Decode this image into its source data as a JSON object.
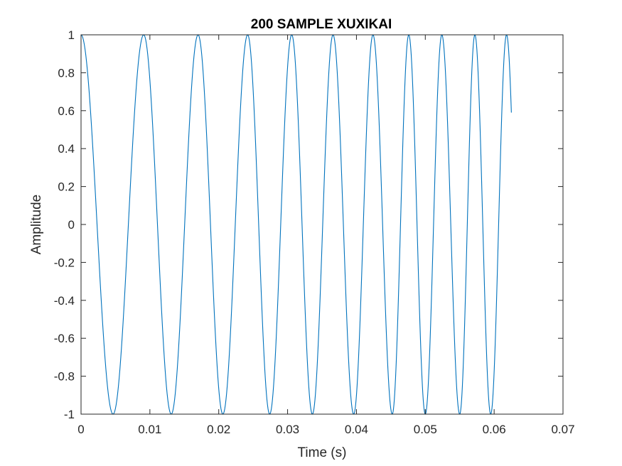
{
  "chart_data": {
    "type": "line",
    "title": "200 SAMPLE XUXIKAI",
    "xlabel": "Time (s)",
    "ylabel": "Amplitude",
    "xlim": [
      0,
      0.07
    ],
    "ylim": [
      -1,
      1
    ],
    "xticks": [
      0,
      0.01,
      0.02,
      0.03,
      0.04,
      0.05,
      0.06,
      0.07
    ],
    "xtick_labels": [
      "0",
      "0.01",
      "0.02",
      "0.03",
      "0.04",
      "0.05",
      "0.06",
      "0.07"
    ],
    "yticks": [
      -1,
      -0.8,
      -0.6,
      -0.4,
      -0.2,
      0,
      0.2,
      0.4,
      0.6,
      0.8,
      1
    ],
    "ytick_labels": [
      "-1",
      "-0.8",
      "-0.6",
      "-0.4",
      "-0.2",
      "0",
      "0.2",
      "0.4",
      "0.6",
      "0.8",
      "1"
    ],
    "grid": false,
    "box": true,
    "colors": {
      "line": "#0072BD",
      "axes": "#262626"
    },
    "series": [
      {
        "description": "linear chirp cosine, amplitude 1; maxima at t=0, 0.0091, 0.0170, 0.0242, 0.0306, 0.0366, 0.0424, 0.0476, 0.0524, 0.0572, 0.0618; ends at t≈0.0625, y≈0.59",
        "x": [
          0,
          0.00465,
          0.0091,
          0.0131,
          0.017,
          0.0206,
          0.0242,
          0.0274,
          0.0306,
          0.0336,
          0.0366,
          0.0396,
          0.0424,
          0.0452,
          0.0476,
          0.05,
          0.0524,
          0.055,
          0.0572,
          0.0595,
          0.0618,
          0.0625
        ],
        "y": [
          1,
          -1,
          1,
          -1,
          1,
          -1,
          1,
          -1,
          1,
          -1,
          1,
          -1,
          1,
          -1,
          1,
          -1,
          1,
          -1,
          1,
          -1,
          1,
          0.59
        ]
      }
    ]
  }
}
